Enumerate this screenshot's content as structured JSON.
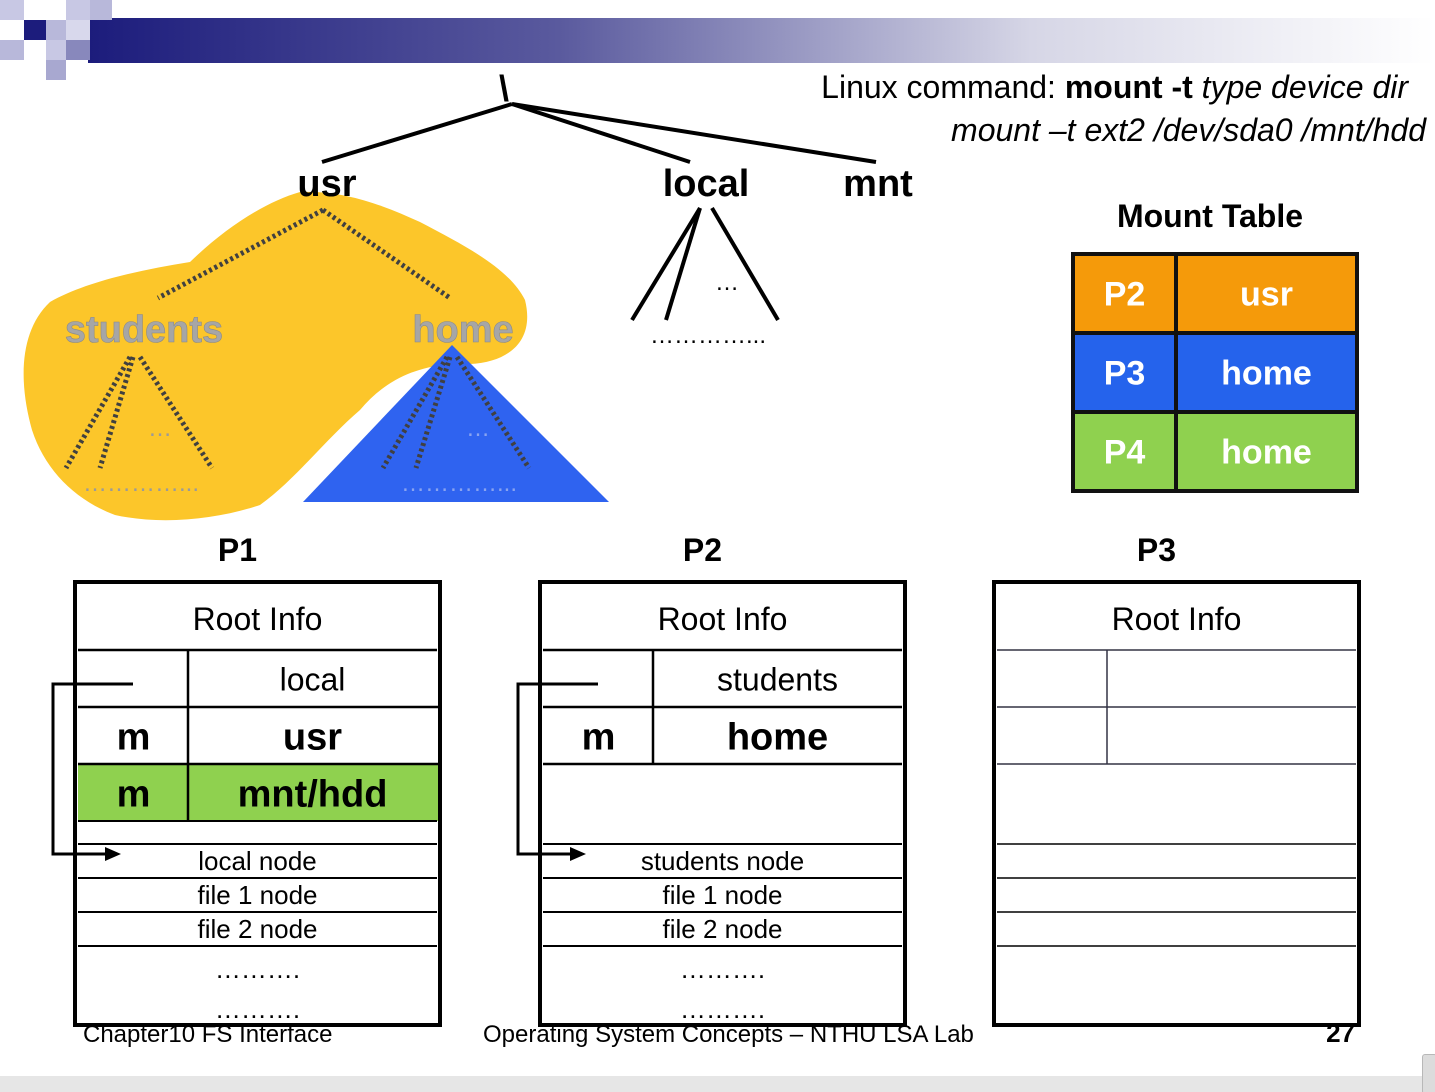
{
  "command": {
    "prefix": "Linux command: ",
    "cmd_bold": "mount -t",
    "cmd_args": " type device dir",
    "example": "mount –t ext2 /dev/sda0 /mnt/hdd"
  },
  "tree": {
    "root": "\\",
    "usr": "usr",
    "local": "local",
    "mnt": "mnt",
    "students": "students",
    "home": "home",
    "ellipsis_short": "…",
    "ellipsis_long": "…………..."
  },
  "mount_table": {
    "title": "Mount Table",
    "rows": [
      {
        "pid": "P2",
        "dir": "usr",
        "color": "#f59a0a"
      },
      {
        "pid": "P3",
        "dir": "home",
        "color": "#2563ec"
      },
      {
        "pid": "P4",
        "dir": "home",
        "color": "#8fd14f"
      }
    ]
  },
  "colors": {
    "usr_blob": "#fcc62a",
    "home_triangle": "#2f63f0",
    "mounted_row": "#8fd14f",
    "header_gradient_start": "#1c1c7c"
  },
  "partitions": [
    {
      "label": "P1",
      "root_info": "Root Info",
      "entries": [
        {
          "flag": "",
          "name": "local",
          "bold": false,
          "highlight": false
        },
        {
          "flag": "m",
          "name": "usr",
          "bold": true,
          "highlight": false
        },
        {
          "flag": "m",
          "name": "mnt/hdd",
          "bold": true,
          "highlight": true
        }
      ],
      "nodes": [
        "local node",
        "file 1 node",
        "file 2 node"
      ],
      "dots": [
        "……….",
        "………."
      ]
    },
    {
      "label": "P2",
      "root_info": "Root Info",
      "entries": [
        {
          "flag": "",
          "name": "students",
          "bold": false,
          "highlight": false
        },
        {
          "flag": "m",
          "name": "home",
          "bold": true,
          "highlight": false
        }
      ],
      "nodes": [
        "students node",
        "file 1 node",
        "file 2 node"
      ],
      "dots": [
        "……….",
        "………."
      ]
    },
    {
      "label": "P3",
      "root_info": "Root Info",
      "entries": [],
      "nodes": [],
      "dots": []
    }
  ],
  "footer": {
    "chapter": "Chapter10 FS Interface",
    "course": "Operating System Concepts – NTHU LSA Lab",
    "page": "27"
  }
}
